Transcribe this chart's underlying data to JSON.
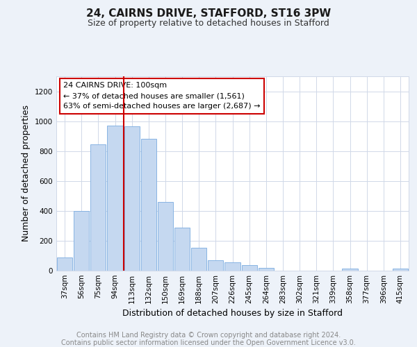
{
  "title": "24, CAIRNS DRIVE, STAFFORD, ST16 3PW",
  "subtitle": "Size of property relative to detached houses in Stafford",
  "xlabel": "Distribution of detached houses by size in Stafford",
  "ylabel": "Number of detached properties",
  "categories": [
    "37sqm",
    "56sqm",
    "75sqm",
    "94sqm",
    "113sqm",
    "132sqm",
    "150sqm",
    "169sqm",
    "188sqm",
    "207sqm",
    "226sqm",
    "245sqm",
    "264sqm",
    "283sqm",
    "302sqm",
    "321sqm",
    "339sqm",
    "358sqm",
    "377sqm",
    "396sqm",
    "415sqm"
  ],
  "values": [
    90,
    400,
    845,
    970,
    965,
    880,
    460,
    290,
    155,
    70,
    55,
    35,
    20,
    0,
    0,
    0,
    0,
    15,
    0,
    0,
    15
  ],
  "bar_color": "#c5d8f0",
  "bar_edgecolor": "#7aabe0",
  "vline_color": "#cc0000",
  "annotation_line1": "24 CAIRNS DRIVE: 100sqm",
  "annotation_line2": "← 37% of detached houses are smaller (1,561)",
  "annotation_line3": "63% of semi-detached houses are larger (2,687) →",
  "annotation_box_edgecolor": "#cc0000",
  "ylim": [
    0,
    1300
  ],
  "yticks": [
    0,
    200,
    400,
    600,
    800,
    1000,
    1200
  ],
  "footer_line1": "Contains HM Land Registry data © Crown copyright and database right 2024.",
  "footer_line2": "Contains public sector information licensed under the Open Government Licence v3.0.",
  "bg_color": "#edf2f9",
  "plot_bg_color": "#ffffff",
  "grid_color": "#d0d8e8",
  "title_fontsize": 11,
  "subtitle_fontsize": 9,
  "axis_label_fontsize": 9,
  "tick_fontsize": 7.5,
  "annotation_fontsize": 8,
  "footer_fontsize": 7
}
